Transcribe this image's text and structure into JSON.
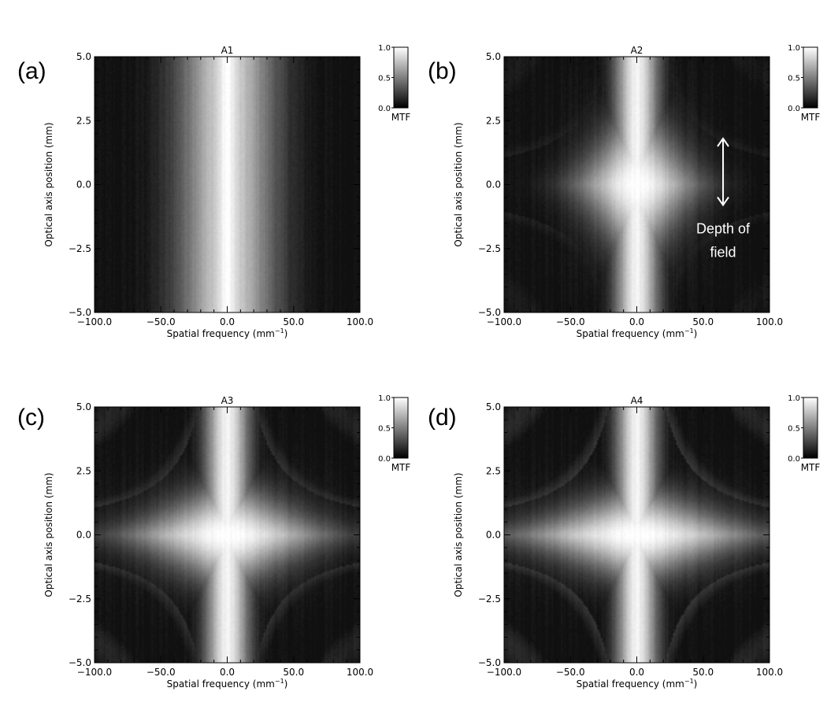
{
  "chart_data": [
    {
      "type": "heatmap",
      "panel_label": "(a)",
      "title": "A1",
      "xlabel": "Spatial frequency (mm",
      "xlabel_sup": "−1",
      "xlabel_end": ")",
      "ylabel": "Optical axis position (mm)",
      "xlim": [
        -100,
        100
      ],
      "ylim": [
        -5,
        5
      ],
      "x_ticks": [
        -100,
        -50,
        0,
        50,
        100
      ],
      "x_tick_labels": [
        "−100.0",
        "−50.0",
        "0.0",
        "50.0",
        "100.0"
      ],
      "y_ticks": [
        5,
        2.5,
        0,
        -2.5,
        -5
      ],
      "y_tick_labels": [
        "5.0",
        "2.5",
        "0.0",
        "−2.5",
        "−5.0"
      ],
      "colorbar": {
        "label": "MTF",
        "ticks": [
          "1.0",
          "0.5",
          "0.0"
        ],
        "range": [
          0,
          1
        ]
      },
      "pattern": {
        "focus_depth": 999,
        "core_halfwidth": 14,
        "astig": 0,
        "ring_amp": 0
      }
    },
    {
      "type": "heatmap",
      "panel_label": "(b)",
      "title": "A2",
      "xlabel": "Spatial frequency (mm",
      "xlabel_sup": "−1",
      "xlabel_end": ")",
      "ylabel": "Optical axis position (mm)",
      "xlim": [
        -100,
        100
      ],
      "ylim": [
        -5,
        5
      ],
      "x_ticks": [
        -100,
        -50,
        0,
        50,
        100
      ],
      "x_tick_labels": [
        "−100.0",
        "−50.0",
        "0.0",
        "50.0",
        "100.0"
      ],
      "y_ticks": [
        5,
        2.5,
        0,
        -2.5,
        -5
      ],
      "y_tick_labels": [
        "5.0",
        "2.5",
        "0.0",
        "−2.5",
        "−5.0"
      ],
      "colorbar": {
        "label": "MTF",
        "ticks": [
          "1.0",
          "0.5",
          "0.0"
        ],
        "range": [
          0,
          1
        ]
      },
      "annotation": {
        "text_lines": [
          "Depth of",
          "field"
        ],
        "y_range": [
          -0.8,
          1.8
        ],
        "x": 65
      },
      "pattern": {
        "focus_depth": 3.5,
        "core_halfwidth": 12,
        "astig": 45,
        "ring_amp": 0.15
      }
    },
    {
      "type": "heatmap",
      "panel_label": "(c)",
      "title": "A3",
      "xlabel": "Spatial frequency (mm",
      "xlabel_sup": "−1",
      "xlabel_end": ")",
      "ylabel": "Optical axis position (mm)",
      "xlim": [
        -100,
        100
      ],
      "ylim": [
        -5,
        5
      ],
      "x_ticks": [
        -100,
        -50,
        0,
        50,
        100
      ],
      "x_tick_labels": [
        "−100.0",
        "−50.0",
        "0.0",
        "50.0",
        "100.0"
      ],
      "y_ticks": [
        5,
        2.5,
        0,
        -2.5,
        -5
      ],
      "y_tick_labels": [
        "5.0",
        "2.5",
        "0.0",
        "−2.5",
        "−5.0"
      ],
      "colorbar": {
        "label": "MTF",
        "ticks": [
          "1.0",
          "0.5",
          "0.0"
        ],
        "range": [
          0,
          1
        ]
      },
      "pattern": {
        "focus_depth": 2.2,
        "core_halfwidth": 12,
        "astig": 75,
        "ring_amp": 0.3
      }
    },
    {
      "type": "heatmap",
      "panel_label": "(d)",
      "title": "A4",
      "xlabel": "Spatial frequency (mm",
      "xlabel_sup": "−1",
      "xlabel_end": ")",
      "ylabel": "Optical axis position (mm)",
      "xlim": [
        -100,
        100
      ],
      "ylim": [
        -5,
        5
      ],
      "x_ticks": [
        -100,
        -50,
        0,
        50,
        100
      ],
      "x_tick_labels": [
        "−100.0",
        "−50.0",
        "0.0",
        "50.0",
        "100.0"
      ],
      "y_ticks": [
        5,
        2.5,
        0,
        -2.5,
        -5
      ],
      "y_tick_labels": [
        "5.0",
        "2.5",
        "0.0",
        "−2.5",
        "−5.0"
      ],
      "colorbar": {
        "label": "MTF",
        "ticks": [
          "1.0",
          "0.5",
          "0.0"
        ],
        "range": [
          0,
          1
        ]
      },
      "pattern": {
        "focus_depth": 1.9,
        "core_halfwidth": 11,
        "astig": 90,
        "ring_amp": 0.35
      }
    }
  ]
}
